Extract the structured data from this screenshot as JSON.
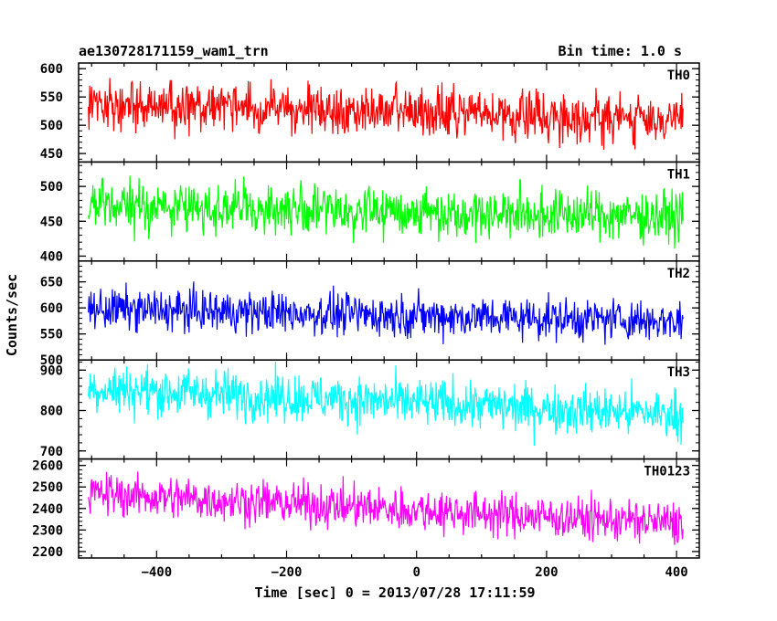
{
  "chart_data": {
    "type": "line",
    "title": "ae130728171159_wam1_trn",
    "subtitle": "Bin time: 1.0 s",
    "xlabel": "Time [sec] 0 = 2013/07/28 17:11:59",
    "ylabel": "Counts/sec",
    "xlim": [
      -520,
      435
    ],
    "xticks": [
      -400,
      -200,
      0,
      200,
      400
    ],
    "panels": [
      {
        "name": "TH0",
        "color": "#ff0000",
        "ylim": [
          435,
          610
        ],
        "yticks": [
          450,
          500,
          550,
          600
        ],
        "trend": {
          "x": [
            -505,
            410
          ],
          "y": [
            538,
            510
          ]
        },
        "noise": 22
      },
      {
        "name": "TH1",
        "color": "#00ff00",
        "ylim": [
          393,
          535
        ],
        "yticks": [
          400,
          450,
          500
        ],
        "trend": {
          "x": [
            -505,
            410
          ],
          "y": [
            472,
            457
          ]
        },
        "noise": 18
      },
      {
        "name": "TH2",
        "color": "#0000ff",
        "ylim": [
          500,
          690
        ],
        "yticks": [
          500,
          550,
          600,
          650
        ],
        "trend": {
          "x": [
            -505,
            410
          ],
          "y": [
            598,
            575
          ]
        },
        "noise": 20
      },
      {
        "name": "TH3",
        "color": "#00ffff",
        "ylim": [
          680,
          925
        ],
        "yticks": [
          700,
          800,
          900
        ],
        "trend": {
          "x": [
            -505,
            410
          ],
          "y": [
            855,
            790
          ]
        },
        "noise": 30
      },
      {
        "name": "TH0123",
        "color": "#ff00ff",
        "ylim": [
          2170,
          2630
        ],
        "yticks": [
          2200,
          2300,
          2400,
          2500,
          2600
        ],
        "trend": {
          "x": [
            -505,
            410
          ],
          "y": [
            2470,
            2330
          ]
        },
        "noise": 50
      }
    ]
  }
}
